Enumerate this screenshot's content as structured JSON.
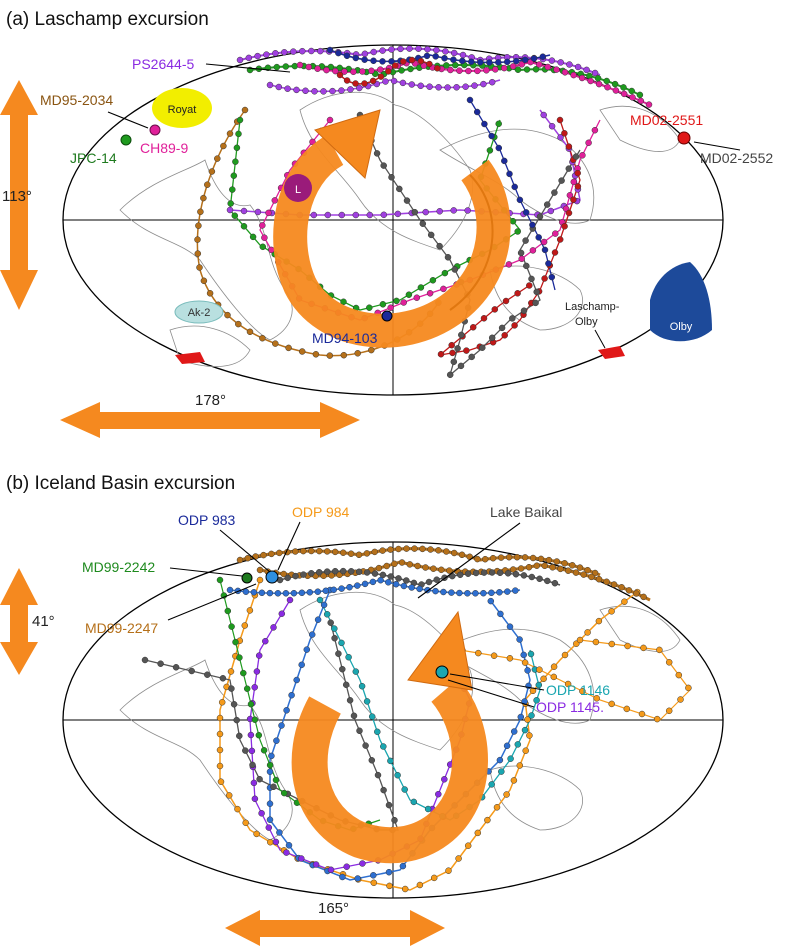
{
  "panel_a": {
    "title": "(a) Laschamp excursion",
    "vertical_span": "113°",
    "horizontal_span": "178°",
    "center_marker": "L",
    "sites": {
      "ps2644": "PS2644-5",
      "md95": "MD95-2034",
      "royat": "Royat",
      "ch89": "CH89-9",
      "jpc14": "JPC-14",
      "md02_2551": "MD02-2551",
      "md02_2552": "MD02-2552",
      "md94": "MD94-103",
      "ak2": "Ak-2",
      "laschamp_olby_1": "Laschamp-",
      "laschamp_olby_2": "Olby",
      "olby": "Olby"
    }
  },
  "panel_b": {
    "title": "(b) Iceland Basin excursion",
    "vertical_span": "41°",
    "horizontal_span": "165°",
    "sites": {
      "odp983": "ODP 983",
      "odp984": "ODP 984",
      "baikal": "Lake Baikal",
      "md99_2242": "MD99-2242",
      "md99_2247": "MD99-2247",
      "odp1146": "ODP 1146",
      "odp1145": "ODP 1145."
    }
  },
  "colors": {
    "arrow_orange": "#f5891f",
    "purple": "#a040e0",
    "green": "#1e9a1e",
    "magenta": "#e0209a",
    "brown": "#b5701a",
    "dark_red": "#c01818",
    "navy": "#1a2a9a",
    "gray": "#555555",
    "light_blue": "#2e6fd0",
    "cyan": "#1aa6b0",
    "orange_line": "#f59a1a",
    "violet": "#8a2be2",
    "olby_blue": "#1d4a9a",
    "royat_yellow": "#f2ee00",
    "ak2_teal": "#b9e0e0"
  }
}
